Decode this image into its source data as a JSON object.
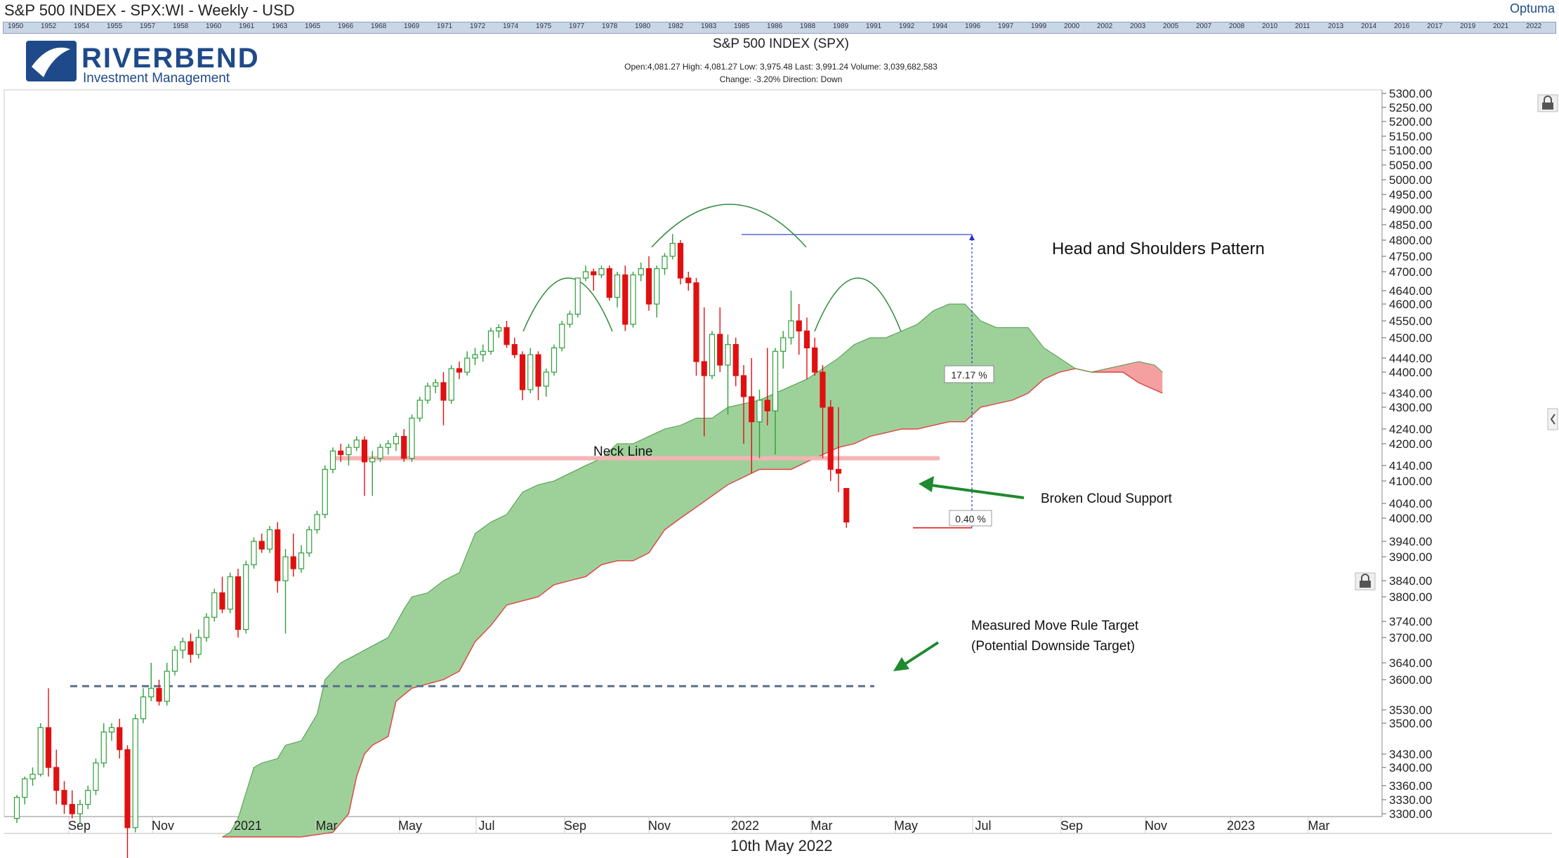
{
  "window": {
    "title": "S&P 500 INDEX - SPX:WI - Weekly - USD",
    "brand": "Optuma"
  },
  "timeline_years": [
    "1950",
    "1952",
    "1954",
    "1955",
    "1957",
    "1958",
    "1960",
    "1961",
    "1963",
    "1965",
    "1966",
    "1968",
    "1969",
    "1971",
    "1972",
    "1974",
    "1975",
    "1977",
    "1978",
    "1980",
    "1982",
    "1983",
    "1985",
    "1986",
    "1988",
    "1989",
    "1991",
    "1992",
    "1994",
    "1996",
    "1997",
    "1999",
    "2000",
    "2002",
    "2003",
    "2005",
    "2007",
    "2008",
    "2010",
    "2011",
    "2013",
    "2014",
    "2016",
    "2017",
    "2019",
    "2021",
    "2022"
  ],
  "logo": {
    "name": "RIVERBEND",
    "subtitle": "Investment Management"
  },
  "chart_header": {
    "title": "S&P 500 INDEX (SPX)",
    "ohlc": "Open:4,081.27   High: 4,081.27   Low: 3,975.48   Last: 3,991.24   Volume: 3,039,682,583",
    "change": "Change: -3.20%   Direction: Down"
  },
  "annotations": {
    "pattern_title": "Head and Shoulders Pattern",
    "neck_line": "Neck Line",
    "broken_cloud": "Broken Cloud Support",
    "target_line1": "Measured Move Rule Target",
    "target_line2": "(Potential Downside Target)",
    "pct_up": "17.17 %",
    "pct_down": "0.40 %"
  },
  "footer_date": "10th May 2022",
  "colors": {
    "up_candle": "#2e9e3a",
    "down_candle": "#e01010",
    "cloud_fill": "#9ed19a",
    "cloud_red_fill": "#f4a0a0",
    "neck_line": "#f4b4b4",
    "target_dash": "#5a6f8a",
    "measure_line": "#2233cc",
    "arrow": "#1f8a2e"
  },
  "chart_data": {
    "type": "candlestick",
    "title": "S&P 500 INDEX (SPX)",
    "y_ticks": [
      5300,
      5250,
      5200,
      5150,
      5100,
      5050,
      5000,
      4950,
      4900,
      4850,
      4800,
      4750,
      4700,
      4640,
      4600,
      4550,
      4500,
      4440,
      4400,
      4340,
      4300,
      4240,
      4200,
      4140,
      4100,
      4040,
      4000,
      3940,
      3900,
      3840,
      3800,
      3740,
      3700,
      3640,
      3600,
      3530,
      3500,
      3430,
      3400,
      3360,
      3330,
      3300
    ],
    "y_tick_labels": [
      "5300.00",
      "5250.00",
      "5200.00",
      "5150.00",
      "5100.00",
      "5050.00",
      "5000.00",
      "4950.00",
      "4900.00",
      "4850.00",
      "4800.00",
      "4750.00",
      "4700.00",
      "4640.00",
      "4600.00",
      "4550.00",
      "4500.00",
      "4440.00",
      "4400.00",
      "4340.00",
      "4300.00",
      "4240.00",
      "4200.00",
      "4140.00",
      "4100.00",
      "4040.00",
      "4000.00",
      "3940.00",
      "3900.00",
      "3840.00",
      "3800.00",
      "3740.00",
      "3700.00",
      "3640.00",
      "3600.00",
      "3530.00",
      "3500.00",
      "3430.00",
      "3400.00",
      "3360.00",
      "3330.00",
      "3300.00"
    ],
    "x_labels": [
      "Sep",
      "Nov",
      "2021",
      "Mar",
      "May",
      "Jul",
      "Sep",
      "Nov",
      "2022",
      "Mar",
      "May",
      "Jul",
      "Sep",
      "Nov",
      "2023",
      "Mar"
    ],
    "candles": [
      [
        3290,
        3340,
        3280,
        3335
      ],
      [
        3335,
        3380,
        3320,
        3375
      ],
      [
        3375,
        3400,
        3360,
        3385
      ],
      [
        3385,
        3500,
        3380,
        3490
      ],
      [
        3490,
        3580,
        3380,
        3400
      ],
      [
        3400,
        3440,
        3320,
        3350
      ],
      [
        3350,
        3370,
        3300,
        3320
      ],
      [
        3320,
        3350,
        3290,
        3300
      ],
      [
        3300,
        3330,
        3280,
        3320
      ],
      [
        3320,
        3360,
        3310,
        3350
      ],
      [
        3350,
        3420,
        3340,
        3410
      ],
      [
        3410,
        3500,
        3400,
        3480
      ],
      [
        3480,
        3500,
        3460,
        3490
      ],
      [
        3490,
        3510,
        3420,
        3440
      ],
      [
        3440,
        3450,
        3200,
        3270
      ],
      [
        3270,
        3520,
        3260,
        3510
      ],
      [
        3510,
        3580,
        3500,
        3560
      ],
      [
        3560,
        3640,
        3550,
        3580
      ],
      [
        3580,
        3600,
        3540,
        3550
      ],
      [
        3550,
        3640,
        3540,
        3620
      ],
      [
        3620,
        3680,
        3610,
        3670
      ],
      [
        3670,
        3700,
        3650,
        3690
      ],
      [
        3690,
        3710,
        3640,
        3660
      ],
      [
        3660,
        3720,
        3650,
        3700
      ],
      [
        3700,
        3760,
        3690,
        3750
      ],
      [
        3750,
        3820,
        3740,
        3810
      ],
      [
        3810,
        3850,
        3760,
        3770
      ],
      [
        3770,
        3860,
        3760,
        3850
      ],
      [
        3850,
        3870,
        3700,
        3720
      ],
      [
        3720,
        3890,
        3710,
        3880
      ],
      [
        3880,
        3950,
        3870,
        3940
      ],
      [
        3940,
        3960,
        3910,
        3920
      ],
      [
        3920,
        3980,
        3910,
        3970
      ],
      [
        3970,
        3990,
        3810,
        3840
      ],
      [
        3840,
        3920,
        3710,
        3900
      ],
      [
        3900,
        3960,
        3850,
        3870
      ],
      [
        3870,
        3930,
        3860,
        3910
      ],
      [
        3910,
        3980,
        3900,
        3970
      ],
      [
        3970,
        4020,
        3960,
        4010
      ],
      [
        4010,
        4140,
        4000,
        4130
      ],
      [
        4130,
        4190,
        4120,
        4180
      ],
      [
        4180,
        4200,
        4150,
        4170
      ],
      [
        4170,
        4200,
        4140,
        4190
      ],
      [
        4190,
        4220,
        4180,
        4210
      ],
      [
        4210,
        4220,
        4060,
        4150
      ],
      [
        4150,
        4180,
        4060,
        4160
      ],
      [
        4160,
        4200,
        4150,
        4190
      ],
      [
        4190,
        4210,
        4170,
        4200
      ],
      [
        4200,
        4230,
        4180,
        4220
      ],
      [
        4220,
        4240,
        4150,
        4160
      ],
      [
        4160,
        4280,
        4150,
        4270
      ],
      [
        4270,
        4330,
        4260,
        4320
      ],
      [
        4320,
        4370,
        4310,
        4360
      ],
      [
        4360,
        4380,
        4340,
        4370
      ],
      [
        4370,
        4400,
        4250,
        4320
      ],
      [
        4320,
        4420,
        4310,
        4410
      ],
      [
        4410,
        4430,
        4380,
        4400
      ],
      [
        4400,
        4460,
        4390,
        4440
      ],
      [
        4440,
        4470,
        4420,
        4450
      ],
      [
        4450,
        4480,
        4430,
        4460
      ],
      [
        4460,
        4530,
        4450,
        4520
      ],
      [
        4520,
        4540,
        4500,
        4530
      ],
      [
        4530,
        4550,
        4470,
        4480
      ],
      [
        4480,
        4500,
        4440,
        4450
      ],
      [
        4450,
        4460,
        4320,
        4350
      ],
      [
        4350,
        4470,
        4340,
        4450
      ],
      [
        4450,
        4460,
        4320,
        4360
      ],
      [
        4360,
        4410,
        4330,
        4400
      ],
      [
        4400,
        4480,
        4390,
        4470
      ],
      [
        4470,
        4550,
        4460,
        4540
      ],
      [
        4540,
        4580,
        4530,
        4570
      ],
      [
        4570,
        4680,
        4560,
        4680
      ],
      [
        4680,
        4720,
        4670,
        4700
      ],
      [
        4700,
        4710,
        4640,
        4690
      ],
      [
        4690,
        4720,
        4680,
        4710
      ],
      [
        4710,
        4720,
        4610,
        4620
      ],
      [
        4620,
        4700,
        4590,
        4690
      ],
      [
        4690,
        4720,
        4520,
        4540
      ],
      [
        4540,
        4700,
        4530,
        4690
      ],
      [
        4690,
        4730,
        4670,
        4710
      ],
      [
        4710,
        4750,
        4580,
        4600
      ],
      [
        4600,
        4720,
        4560,
        4710
      ],
      [
        4710,
        4760,
        4690,
        4750
      ],
      [
        4750,
        4820,
        4740,
        4790
      ],
      [
        4790,
        4800,
        4660,
        4680
      ],
      [
        4680,
        4700,
        4640,
        4665
      ],
      [
        4665,
        4680,
        4390,
        4430
      ],
      [
        4430,
        4590,
        4220,
        4390
      ],
      [
        4390,
        4520,
        4380,
        4510
      ],
      [
        4510,
        4590,
        4400,
        4420
      ],
      [
        4420,
        4510,
        4280,
        4480
      ],
      [
        4480,
        4500,
        4360,
        4390
      ],
      [
        4390,
        4420,
        4200,
        4330
      ],
      [
        4330,
        4440,
        4120,
        4260
      ],
      [
        4260,
        4350,
        4160,
        4320
      ],
      [
        4320,
        4470,
        4250,
        4290
      ],
      [
        4290,
        4470,
        4170,
        4460
      ],
      [
        4460,
        4520,
        4410,
        4500
      ],
      [
        4500,
        4640,
        4480,
        4550
      ],
      [
        4550,
        4600,
        4450,
        4520
      ],
      [
        4520,
        4560,
        4380,
        4470
      ],
      [
        4470,
        4500,
        4390,
        4400
      ],
      [
        4400,
        4420,
        4160,
        4300
      ],
      [
        4300,
        4320,
        4100,
        4130
      ],
      [
        4130,
        4300,
        4070,
        4120
      ],
      [
        4080,
        4080,
        3975,
        3990
      ]
    ],
    "cloud_upper": [
      [
        26,
        3250
      ],
      [
        27,
        3260
      ],
      [
        28,
        3290
      ],
      [
        30,
        3400
      ],
      [
        31,
        3410
      ],
      [
        33,
        3420
      ],
      [
        34,
        3450
      ],
      [
        36,
        3460
      ],
      [
        38,
        3520
      ],
      [
        39,
        3600
      ],
      [
        41,
        3640
      ],
      [
        43,
        3660
      ],
      [
        45,
        3680
      ],
      [
        47,
        3700
      ],
      [
        49,
        3770
      ],
      [
        50,
        3800
      ],
      [
        52,
        3810
      ],
      [
        54,
        3840
      ],
      [
        56,
        3860
      ],
      [
        58,
        3960
      ],
      [
        60,
        3990
      ],
      [
        62,
        4010
      ],
      [
        64,
        4070
      ],
      [
        66,
        4090
      ],
      [
        68,
        4100
      ],
      [
        70,
        4120
      ],
      [
        72,
        4140
      ],
      [
        74,
        4160
      ],
      [
        76,
        4200
      ],
      [
        78,
        4200
      ],
      [
        80,
        4220
      ],
      [
        82,
        4240
      ],
      [
        84,
        4250
      ],
      [
        86,
        4270
      ],
      [
        88,
        4270
      ],
      [
        90,
        4300
      ],
      [
        92,
        4310
      ],
      [
        94,
        4320
      ],
      [
        96,
        4340
      ],
      [
        98,
        4360
      ],
      [
        100,
        4380
      ],
      [
        102,
        4410
      ],
      [
        104,
        4440
      ],
      [
        106,
        4480
      ],
      [
        108,
        4500
      ],
      [
        110,
        4500
      ],
      [
        112,
        4520
      ],
      [
        114,
        4540
      ],
      [
        116,
        4580
      ],
      [
        118,
        4600
      ],
      [
        120,
        4600
      ],
      [
        122,
        4550
      ],
      [
        124,
        4530
      ],
      [
        126,
        4530
      ],
      [
        128,
        4530
      ],
      [
        130,
        4470
      ],
      [
        132,
        4440
      ],
      [
        134,
        4410
      ],
      [
        136,
        4400
      ]
    ],
    "cloud_lower": [
      [
        26,
        3250
      ],
      [
        28,
        3250
      ],
      [
        32,
        3250
      ],
      [
        36,
        3250
      ],
      [
        40,
        3260
      ],
      [
        42,
        3300
      ],
      [
        43,
        3380
      ],
      [
        44,
        3430
      ],
      [
        45,
        3450
      ],
      [
        47,
        3470
      ],
      [
        48,
        3550
      ],
      [
        50,
        3580
      ],
      [
        52,
        3590
      ],
      [
        54,
        3600
      ],
      [
        56,
        3620
      ],
      [
        58,
        3690
      ],
      [
        60,
        3730
      ],
      [
        62,
        3780
      ],
      [
        64,
        3790
      ],
      [
        66,
        3800
      ],
      [
        68,
        3830
      ],
      [
        70,
        3840
      ],
      [
        72,
        3850
      ],
      [
        74,
        3880
      ],
      [
        76,
        3890
      ],
      [
        78,
        3890
      ],
      [
        80,
        3910
      ],
      [
        82,
        3970
      ],
      [
        84,
        4000
      ],
      [
        86,
        4030
      ],
      [
        88,
        4060
      ],
      [
        90,
        4090
      ],
      [
        92,
        4110
      ],
      [
        94,
        4130
      ],
      [
        96,
        4130
      ],
      [
        98,
        4130
      ],
      [
        100,
        4150
      ],
      [
        102,
        4170
      ],
      [
        104,
        4190
      ],
      [
        106,
        4200
      ],
      [
        108,
        4220
      ],
      [
        110,
        4230
      ],
      [
        112,
        4240
      ],
      [
        114,
        4240
      ],
      [
        116,
        4250
      ],
      [
        118,
        4260
      ],
      [
        120,
        4260
      ],
      [
        122,
        4300
      ],
      [
        124,
        4310
      ],
      [
        126,
        4320
      ],
      [
        128,
        4340
      ],
      [
        130,
        4380
      ],
      [
        132,
        4400
      ],
      [
        134,
        4410
      ],
      [
        136,
        4400
      ]
    ],
    "cloud_red_upper": [
      [
        136,
        4400
      ],
      [
        138,
        4410
      ],
      [
        140,
        4420
      ],
      [
        142,
        4430
      ],
      [
        144,
        4420
      ],
      [
        145,
        4400
      ]
    ],
    "cloud_red_lower": [
      [
        136,
        4400
      ],
      [
        138,
        4400
      ],
      [
        140,
        4400
      ],
      [
        142,
        4370
      ],
      [
        144,
        4350
      ],
      [
        145,
        4340
      ]
    ],
    "neck_line": 4160,
    "target_level": 3585,
    "measure_top": 4818,
    "measure_bottom": 3975
  }
}
